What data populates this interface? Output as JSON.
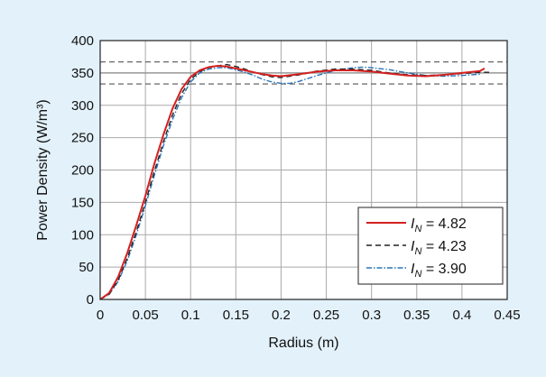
{
  "chart_data": {
    "type": "line",
    "xlabel": "Radius (m)",
    "ylabel": "Power Density (W/m³)",
    "xlim": [
      0,
      0.45
    ],
    "ylim": [
      0,
      400
    ],
    "xticks": [
      "0",
      "0.05",
      "0.1",
      "0.15",
      "0.2",
      "0.25",
      "0.3",
      "0.35",
      "0.4",
      "0.45"
    ],
    "yticks": [
      "0",
      "50",
      "100",
      "150",
      "200",
      "250",
      "300",
      "350",
      "400"
    ],
    "grid": true,
    "legend_position": "bottom-right",
    "reference_lines": [
      {
        "y": 367,
        "style": "dashed",
        "color": "#555555"
      },
      {
        "y": 350,
        "style": "solid",
        "color": "#999999"
      },
      {
        "y": 333,
        "style": "dashed",
        "color": "#555555"
      }
    ],
    "series": [
      {
        "label_prefix": "I",
        "label_subscript": "N",
        "label_value": " = 4.82",
        "color": "#d42020",
        "style": "solid",
        "x": [
          0,
          0.01,
          0.02,
          0.03,
          0.04,
          0.05,
          0.06,
          0.07,
          0.08,
          0.09,
          0.1,
          0.11,
          0.12,
          0.13,
          0.14,
          0.15,
          0.16,
          0.17,
          0.18,
          0.19,
          0.2,
          0.22,
          0.24,
          0.26,
          0.28,
          0.3,
          0.32,
          0.34,
          0.36,
          0.38,
          0.4,
          0.42,
          0.425
        ],
        "y": [
          0,
          10,
          35,
          72,
          115,
          160,
          210,
          255,
          295,
          325,
          344,
          354,
          359,
          361,
          360,
          357,
          354,
          351,
          348,
          346,
          345,
          348,
          352,
          354,
          354,
          352,
          349,
          346,
          345,
          347,
          350,
          353,
          357
        ]
      },
      {
        "label_prefix": "I",
        "label_subscript": "N",
        "label_value": " = 4.23",
        "color": "#222222",
        "style": "dashed",
        "x": [
          0,
          0.01,
          0.02,
          0.03,
          0.04,
          0.05,
          0.06,
          0.07,
          0.08,
          0.09,
          0.1,
          0.11,
          0.12,
          0.13,
          0.14,
          0.15,
          0.16,
          0.17,
          0.18,
          0.19,
          0.2,
          0.22,
          0.24,
          0.26,
          0.28,
          0.3,
          0.32,
          0.34,
          0.36,
          0.38,
          0.4,
          0.42,
          0.43
        ],
        "y": [
          0,
          8,
          30,
          64,
          105,
          150,
          198,
          244,
          285,
          318,
          340,
          352,
          358,
          361,
          363,
          360,
          356,
          351,
          347,
          344,
          343,
          347,
          353,
          356,
          356,
          354,
          350,
          347,
          346,
          347,
          349,
          351,
          351
        ]
      },
      {
        "label_prefix": "I",
        "label_subscript": "N",
        "label_value": " = 3.90",
        "color": "#2a74b8",
        "style": "dashdot",
        "x": [
          0,
          0.01,
          0.02,
          0.03,
          0.04,
          0.05,
          0.06,
          0.07,
          0.08,
          0.09,
          0.1,
          0.11,
          0.12,
          0.13,
          0.14,
          0.15,
          0.16,
          0.17,
          0.18,
          0.19,
          0.2,
          0.21,
          0.22,
          0.24,
          0.26,
          0.28,
          0.29,
          0.3,
          0.32,
          0.34,
          0.36,
          0.38,
          0.4,
          0.42
        ],
        "y": [
          0,
          8,
          28,
          60,
          100,
          145,
          192,
          238,
          278,
          312,
          336,
          350,
          356,
          358,
          358,
          355,
          351,
          346,
          340,
          336,
          334,
          334,
          337,
          346,
          354,
          358,
          359,
          358,
          355,
          350,
          346,
          345,
          346,
          348
        ]
      }
    ]
  }
}
